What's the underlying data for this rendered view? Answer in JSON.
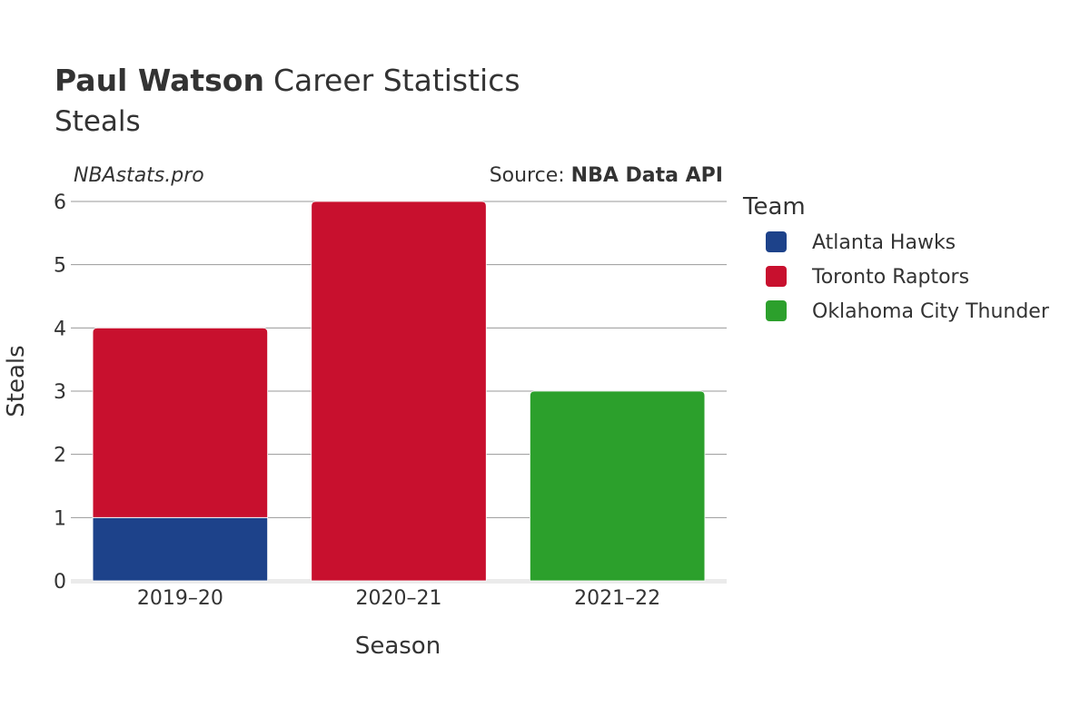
{
  "chart_data": {
    "type": "bar",
    "stacked": true,
    "title_player": "Paul Watson",
    "title_rest": "Career Statistics",
    "subtitle": "Steals",
    "credit": "NBAstats.pro",
    "source_prefix": "Source: ",
    "source_name": "NBA Data API",
    "xlabel": "Season",
    "ylabel": "Steals",
    "ylim": [
      0,
      6
    ],
    "yticks": [
      0,
      1,
      2,
      3,
      4,
      5,
      6
    ],
    "categories": [
      "2019–20",
      "2020–21",
      "2021–22"
    ],
    "legend_title": "Team",
    "series": [
      {
        "name": "Atlanta Hawks",
        "color": "#1d428a",
        "values": [
          1,
          0,
          0
        ]
      },
      {
        "name": "Toronto Raptors",
        "color": "#c8102e",
        "values": [
          3,
          6,
          0
        ]
      },
      {
        "name": "Oklahoma City Thunder",
        "color": "#2ca02c",
        "values": [
          0,
          0,
          3
        ]
      }
    ]
  }
}
